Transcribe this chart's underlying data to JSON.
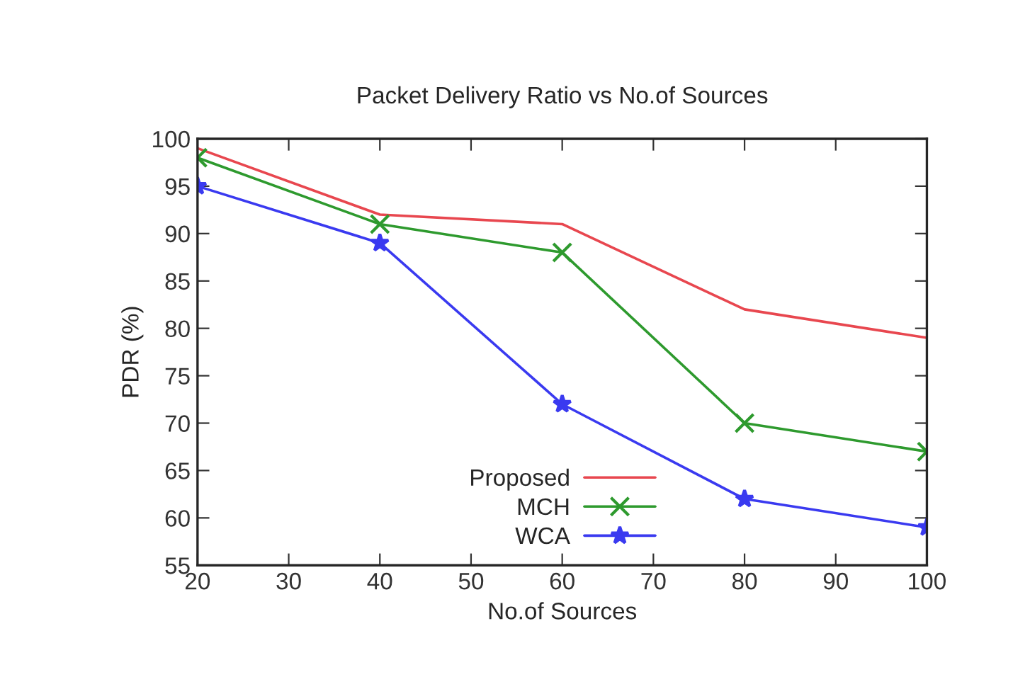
{
  "chart_data": {
    "type": "line",
    "title": "Packet Delivery Ratio vs No.of Sources",
    "xlabel": "No.of Sources",
    "ylabel": "PDR (%)",
    "x": [
      20,
      40,
      60,
      80,
      100
    ],
    "series": [
      {
        "name": "Proposed",
        "color": "#e8474f",
        "values": [
          99,
          92,
          91,
          82,
          79
        ],
        "marker": "none"
      },
      {
        "name": "MCH",
        "color": "#2e9a2e",
        "values": [
          98,
          91,
          88,
          70,
          67
        ],
        "marker": "cross"
      },
      {
        "name": "WCA",
        "color": "#3a3af0",
        "values": [
          95,
          89,
          72,
          62,
          59
        ],
        "marker": "star"
      }
    ],
    "xlim": [
      20,
      100
    ],
    "xticks": [
      20,
      30,
      40,
      50,
      60,
      70,
      80,
      90,
      100
    ],
    "ylim": [
      55,
      100
    ],
    "yticks": [
      55,
      60,
      65,
      70,
      75,
      80,
      85,
      90,
      95,
      100
    ],
    "grid": false,
    "legend": "bottom",
    "line_style": "solid"
  }
}
